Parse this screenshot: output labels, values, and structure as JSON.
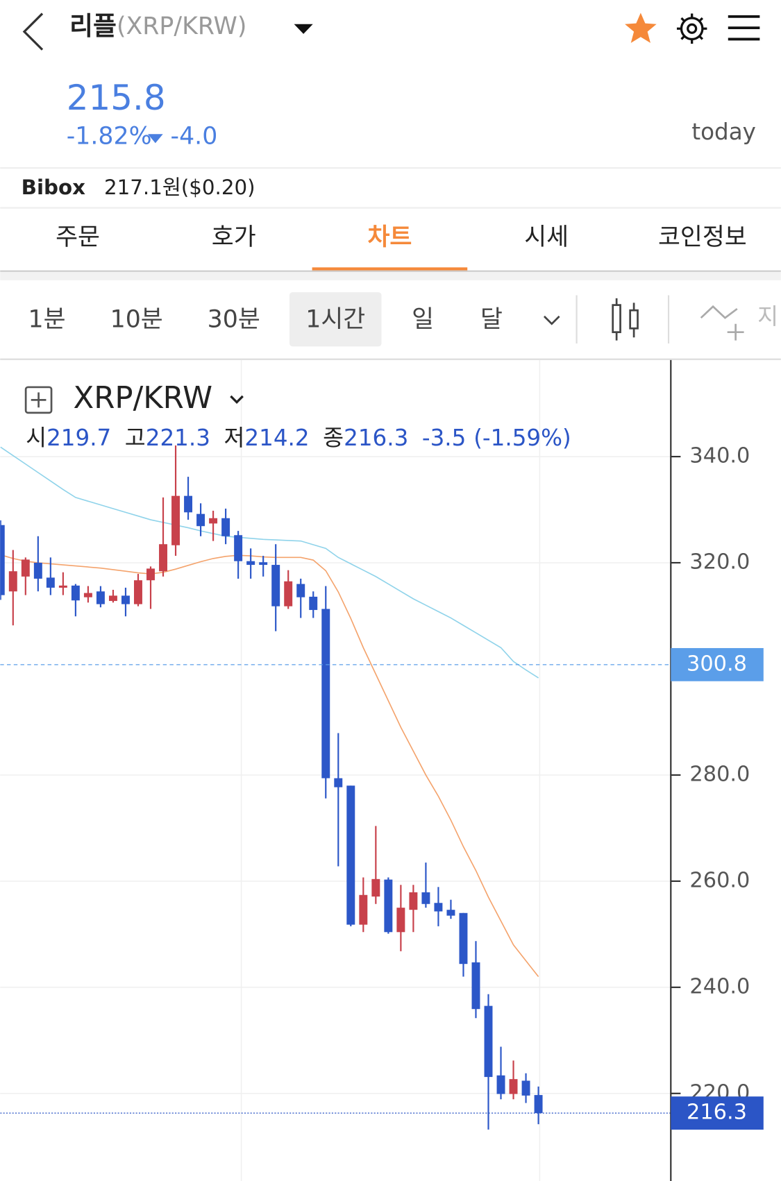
{
  "header": {
    "name": "리플",
    "pair": "(XRP/KRW)",
    "price": 215.8,
    "change_pct": "-1.82%",
    "change": "-4.0",
    "period": "today"
  },
  "exchange": {
    "name": "Bibox",
    "price": "217.1원($0.20)"
  },
  "tabs": [
    "주문",
    "호가",
    "차트",
    "시세",
    "코인정보"
  ],
  "active_tab": 2,
  "intervals": [
    "1분",
    "10분",
    "30분",
    "1시간",
    "일",
    "달"
  ],
  "active_interval": 3,
  "indicator_label": "지",
  "chart_data": {
    "type": "candlestick",
    "title": "XRP/KRW",
    "legend_labels": [
      "시",
      "고",
      "저",
      "종"
    ],
    "change": "-3.5",
    "change_pct": "(-1.59%)",
    "categories": [
      null,
      null,
      null,
      null,
      null,
      null,
      null,
      null,
      null,
      null,
      null,
      null,
      null,
      null,
      null,
      null,
      null,
      null,
      null,
      null,
      null,
      null,
      null,
      null,
      null,
      null,
      null,
      null,
      null,
      null,
      null,
      null,
      null,
      null,
      null,
      null,
      null,
      null,
      null,
      null,
      null,
      null,
      null,
      null
    ],
    "open": [
      327.1,
      314.6,
      317.4,
      320,
      317.2,
      315.3,
      315.7,
      313.5,
      314.6,
      312.8,
      313.8,
      312.2,
      316.7,
      318.4,
      323.3,
      332.6,
      329.2,
      327.4,
      328.4,
      325.2,
      320.3,
      320.1,
      319.6,
      311.8,
      316,
      313.6,
      311.3,
      279.4,
      278,
      251.8,
      257.1,
      260.3,
      250.4,
      254.6,
      257.9,
      255.9,
      254.6,
      254,
      244.7,
      236.5,
      223.4,
      219.9,
      222.4,
      219.7
    ],
    "high": [
      328,
      322.4,
      321,
      325,
      321,
      318.2,
      316,
      315.6,
      315.6,
      314.9,
      315.3,
      317.9,
      319.3,
      332.3,
      342.1,
      336.2,
      331.2,
      329.8,
      330.2,
      326,
      322.7,
      321.3,
      323.5,
      318.6,
      317,
      314.6,
      315.6,
      287.9,
      278,
      260.7,
      270.4,
      260.7,
      259.3,
      259.3,
      263.5,
      258.9,
      256.5,
      254,
      248.7,
      238.7,
      228.8,
      226.2,
      223.8,
      221.3
    ],
    "low": [
      313,
      308.2,
      313.9,
      314.6,
      313.9,
      313.9,
      309.9,
      312.5,
      311.6,
      312.5,
      309.9,
      311.8,
      311.3,
      317.4,
      321.3,
      328.1,
      325,
      324.1,
      323.5,
      317,
      317,
      317.4,
      307.1,
      311.3,
      309.6,
      309.6,
      275.6,
      262.8,
      251.5,
      250.4,
      255.7,
      250.1,
      246.8,
      250.4,
      255,
      251.5,
      252.9,
      242,
      234.2,
      213.2,
      218.9,
      218.9,
      218.2,
      214.2
    ],
    "close": [
      313.9,
      318.4,
      320.6,
      317,
      315.3,
      315.7,
      312.9,
      314.3,
      312.2,
      313.8,
      312.2,
      316.7,
      318.9,
      323.5,
      332.6,
      329.5,
      326.9,
      328.4,
      325,
      320.3,
      319.6,
      319.6,
      311.8,
      316.5,
      313.5,
      311.1,
      279.4,
      277.7,
      251.8,
      257.4,
      260.4,
      250.4,
      255,
      257.9,
      255.7,
      254.3,
      253.5,
      244.4,
      235.9,
      223.1,
      219.9,
      222.7,
      219.6,
      216.3
    ],
    "up_color": "#c8414b",
    "down_color": "#2c57c8",
    "series": [
      {
        "color": "#f4a36c",
        "values": [
          321.5,
          320.8,
          320.3,
          320,
          319.8,
          319.6,
          319.4,
          319.2,
          319,
          318.7,
          318.4,
          318.1,
          317.9,
          318.2,
          318.8,
          319.5,
          320.2,
          320.8,
          321.2,
          321.4,
          321.3,
          321.1,
          321,
          321,
          321,
          320.5,
          318.5,
          314.5,
          309.5,
          304,
          299,
          294,
          289,
          284.5,
          280,
          276,
          271.5,
          266.5,
          262,
          257,
          252.5,
          248,
          245,
          242
        ]
      },
      {
        "color": "#8fd3ea",
        "values": [
          341.8,
          340.2,
          338.6,
          337,
          335.4,
          333.8,
          332.3,
          331.6,
          330.9,
          330.2,
          329.5,
          328.8,
          328.1,
          327.6,
          327.1,
          326.6,
          326,
          325.5,
          325,
          324.8,
          324.6,
          324.4,
          324.3,
          324.2,
          324.1,
          323.4,
          322.7,
          321,
          319.8,
          318.6,
          317.4,
          316,
          314.6,
          313.2,
          312,
          310.8,
          309.6,
          308.2,
          306.8,
          305.4,
          304,
          301.4,
          299.8,
          298.3
        ]
      }
    ],
    "ylim": [
      203.5,
      358.2
    ],
    "yticks": [
      {
        "value": 340,
        "label": "340.0"
      },
      {
        "value": 320,
        "label": "320.0"
      },
      {
        "value": 280,
        "label": "280.0"
      },
      {
        "value": 260,
        "label": "260.0"
      },
      {
        "value": 240,
        "label": "240.0"
      },
      {
        "value": 220,
        "label": "220.0"
      }
    ],
    "reference_lines": [
      {
        "value": 300.8,
        "color": "#5b9ee9"
      },
      {
        "value": 216.3,
        "color": "#2b55c6"
      }
    ],
    "grid": true
  }
}
